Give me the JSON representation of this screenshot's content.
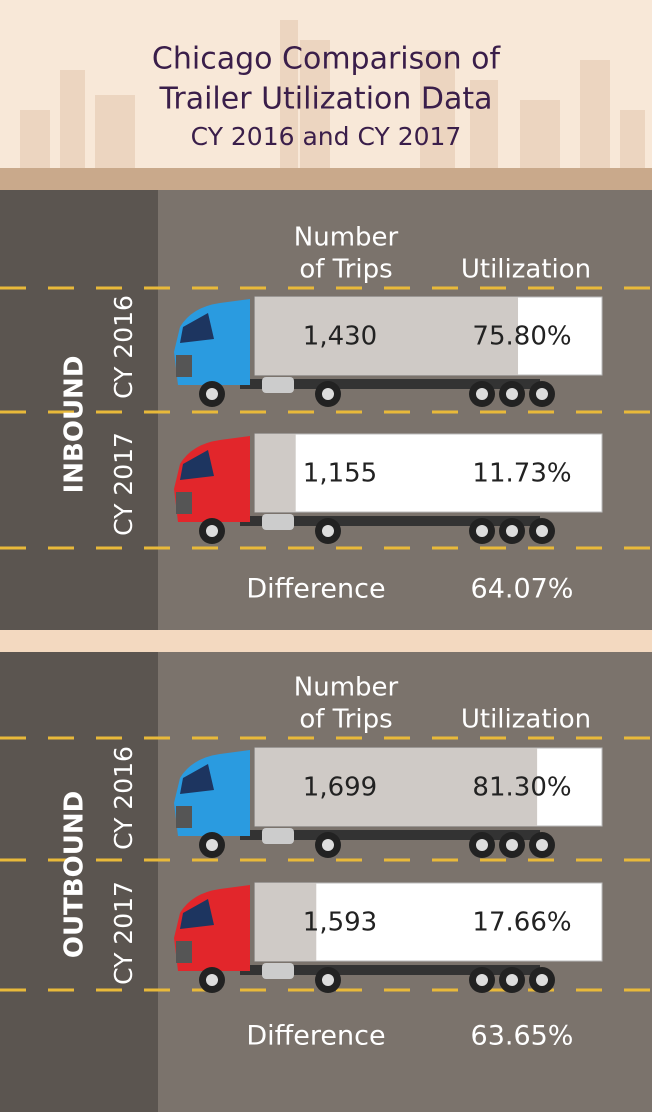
{
  "title_lines": [
    "Chicago Comparison of",
    "Trailer Utilization Data"
  ],
  "subtitle": "CY 2016 and CY 2017",
  "sections": [
    {
      "label": "INBOUND",
      "trips_header": [
        "Number",
        "of Trips"
      ],
      "utilization_header": "Utilization",
      "rows": [
        {
          "year": "CY 2016",
          "color": "#2a9be0",
          "trips": "1,430",
          "utilization": {
            "value": 75.8,
            "label": "75.80%"
          }
        },
        {
          "year": "CY 2017",
          "color": "#e2262b",
          "trips": "1,155",
          "utilization": {
            "value": 11.73,
            "label": "11.73%"
          }
        }
      ],
      "difference": {
        "label": "Difference",
        "value": "64.07%"
      }
    },
    {
      "label": "OUTBOUND",
      "trips_header": [
        "Number",
        "of Trips"
      ],
      "utilization_header": "Utilization",
      "rows": [
        {
          "year": "CY 2016",
          "color": "#2a9be0",
          "trips": "1,699",
          "utilization": {
            "value": 81.3,
            "label": "81.30%"
          }
        },
        {
          "year": "CY 2017",
          "color": "#e2262b",
          "trips": "1,593",
          "utilization": {
            "value": 17.66,
            "label": "17.66%"
          }
        }
      ],
      "difference": {
        "label": "Difference",
        "value": "63.65%"
      }
    }
  ]
}
